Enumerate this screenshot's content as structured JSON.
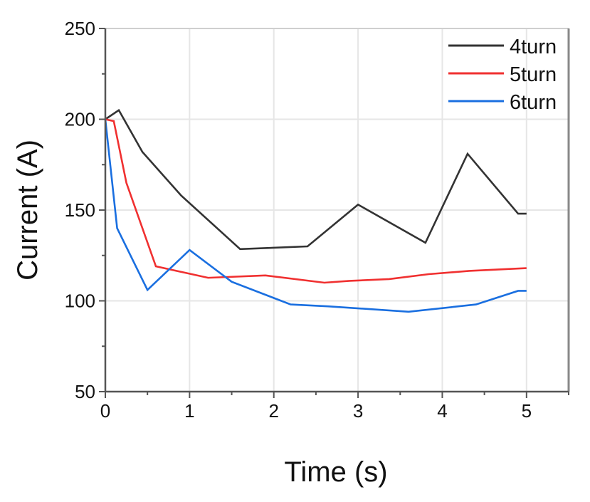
{
  "chart_data": {
    "type": "line",
    "title": "",
    "xlabel": "Time (s)",
    "ylabel": "Current (A)",
    "xlim": [
      0,
      5.5
    ],
    "ylim": [
      50,
      250
    ],
    "xticks": [
      0,
      1,
      2,
      3,
      4,
      5
    ],
    "yticks": [
      50,
      100,
      150,
      200,
      250
    ],
    "grid": true,
    "legend_position": "top-right",
    "series": [
      {
        "name": "4turn",
        "color": "#333333",
        "x": [
          0,
          0.16,
          0.44,
          0.9,
          1.6,
          2.4,
          3.0,
          3.8,
          4.3,
          4.9,
          5.0
        ],
        "y": [
          200,
          205,
          182,
          158,
          128.5,
          130,
          153,
          132,
          181,
          148,
          148
        ]
      },
      {
        "name": "5turn",
        "color": "#f03030",
        "x": [
          0,
          0.1,
          0.25,
          0.6,
          1.22,
          1.9,
          2.6,
          2.9,
          3.37,
          3.84,
          4.32,
          5.0
        ],
        "y": [
          200,
          199,
          165,
          119,
          112.7,
          114,
          110,
          111,
          112,
          114.7,
          116.5,
          118
        ]
      },
      {
        "name": "6turn",
        "color": "#1a6fe0",
        "x": [
          0,
          0.14,
          0.5,
          1.0,
          1.5,
          2.2,
          2.64,
          3.6,
          4.4,
          4.9,
          5.0
        ],
        "y": [
          200,
          140,
          106,
          128,
          110.5,
          98,
          97,
          94,
          98,
          105.5,
          105.5
        ]
      }
    ]
  }
}
